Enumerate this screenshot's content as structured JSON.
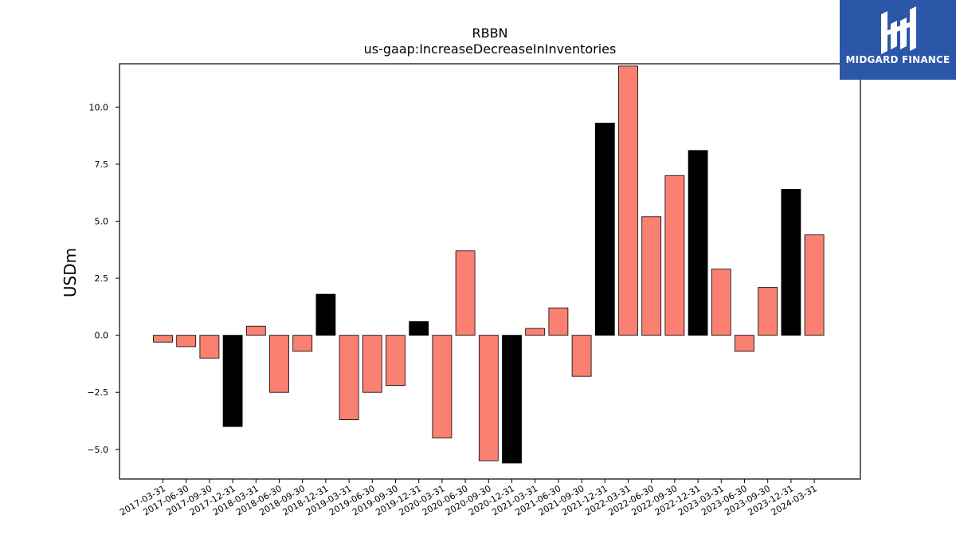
{
  "chart_data": {
    "type": "bar",
    "title": "RBBN",
    "subtitle": "us-gaap:IncreaseDecreaseInInventories",
    "xlabel": "",
    "ylabel": "USDm",
    "ylim": [
      -6.3,
      11.9
    ],
    "yticks": [
      "−5.0",
      "−2.5",
      "0.0",
      "2.5",
      "5.0",
      "7.5",
      "10.0"
    ],
    "ytick_values": [
      -5.0,
      -2.5,
      0.0,
      2.5,
      5.0,
      7.5,
      10.0
    ],
    "categories": [
      "2017-03-31",
      "2017-06-30",
      "2017-09-30",
      "2017-12-31",
      "2018-03-31",
      "2018-06-30",
      "2018-09-30",
      "2018-12-31",
      "2019-03-31",
      "2019-06-30",
      "2019-09-30",
      "2019-12-31",
      "2020-03-31",
      "2020-06-30",
      "2020-09-30",
      "2020-12-31",
      "2021-03-31",
      "2021-06-30",
      "2021-09-30",
      "2021-12-31",
      "2022-03-31",
      "2022-06-30",
      "2022-09-30",
      "2022-12-31",
      "2023-03-31",
      "2023-06-30",
      "2023-09-30",
      "2023-12-31",
      "2024-03-31"
    ],
    "values": [
      -0.3,
      -0.5,
      -1.0,
      -4.0,
      0.4,
      -2.5,
      -0.7,
      1.8,
      -3.7,
      -2.5,
      -2.2,
      0.6,
      -4.5,
      3.7,
      -5.5,
      -5.6,
      0.3,
      1.2,
      -1.8,
      9.3,
      11.8,
      5.2,
      7.0,
      8.1,
      2.9,
      -0.7,
      2.1,
      6.4,
      4.4
    ],
    "quarter_end_highlight": true,
    "colors": {
      "quarter": "#fa8072",
      "year_end": "#000000",
      "edge": "#000000"
    },
    "grid": false
  },
  "logo": {
    "text": "MIDGARD FINANCE",
    "icon": "midgard-logo-icon",
    "bg": "#2c57a8"
  }
}
